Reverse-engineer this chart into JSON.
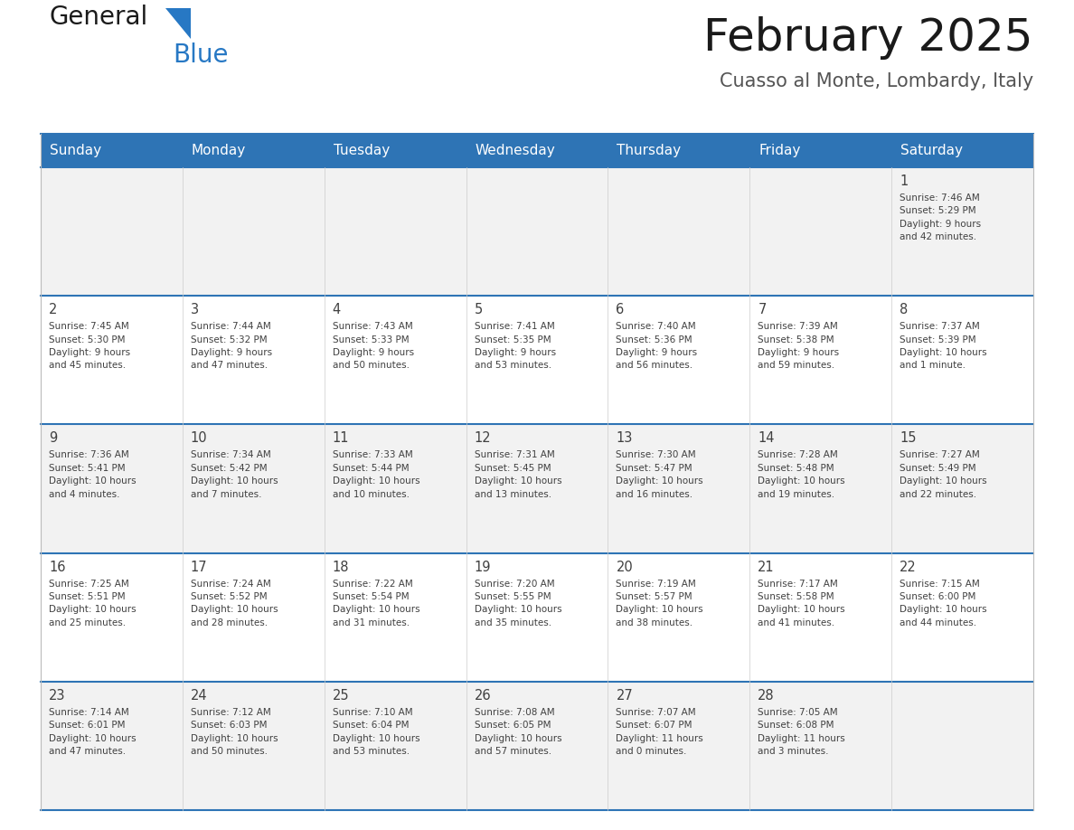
{
  "title": "February 2025",
  "subtitle": "Cuasso al Monte, Lombardy, Italy",
  "header_bg": "#2E74B5",
  "header_text_color": "#FFFFFF",
  "day_names": [
    "Sunday",
    "Monday",
    "Tuesday",
    "Wednesday",
    "Thursday",
    "Friday",
    "Saturday"
  ],
  "alt_row_bg": "#F2F2F2",
  "white_bg": "#FFFFFF",
  "border_color": "#2E74B5",
  "cell_border_color": "#CCCCCC",
  "text_color": "#404040",
  "logo_text_color": "#1A1A1A",
  "logo_blue_color": "#2778C4",
  "title_color": "#1A1A1A",
  "subtitle_color": "#555555",
  "weeks": [
    [
      {
        "day": null,
        "info": null
      },
      {
        "day": null,
        "info": null
      },
      {
        "day": null,
        "info": null
      },
      {
        "day": null,
        "info": null
      },
      {
        "day": null,
        "info": null
      },
      {
        "day": null,
        "info": null
      },
      {
        "day": 1,
        "info": "Sunrise: 7:46 AM\nSunset: 5:29 PM\nDaylight: 9 hours\nand 42 minutes."
      }
    ],
    [
      {
        "day": 2,
        "info": "Sunrise: 7:45 AM\nSunset: 5:30 PM\nDaylight: 9 hours\nand 45 minutes."
      },
      {
        "day": 3,
        "info": "Sunrise: 7:44 AM\nSunset: 5:32 PM\nDaylight: 9 hours\nand 47 minutes."
      },
      {
        "day": 4,
        "info": "Sunrise: 7:43 AM\nSunset: 5:33 PM\nDaylight: 9 hours\nand 50 minutes."
      },
      {
        "day": 5,
        "info": "Sunrise: 7:41 AM\nSunset: 5:35 PM\nDaylight: 9 hours\nand 53 minutes."
      },
      {
        "day": 6,
        "info": "Sunrise: 7:40 AM\nSunset: 5:36 PM\nDaylight: 9 hours\nand 56 minutes."
      },
      {
        "day": 7,
        "info": "Sunrise: 7:39 AM\nSunset: 5:38 PM\nDaylight: 9 hours\nand 59 minutes."
      },
      {
        "day": 8,
        "info": "Sunrise: 7:37 AM\nSunset: 5:39 PM\nDaylight: 10 hours\nand 1 minute."
      }
    ],
    [
      {
        "day": 9,
        "info": "Sunrise: 7:36 AM\nSunset: 5:41 PM\nDaylight: 10 hours\nand 4 minutes."
      },
      {
        "day": 10,
        "info": "Sunrise: 7:34 AM\nSunset: 5:42 PM\nDaylight: 10 hours\nand 7 minutes."
      },
      {
        "day": 11,
        "info": "Sunrise: 7:33 AM\nSunset: 5:44 PM\nDaylight: 10 hours\nand 10 minutes."
      },
      {
        "day": 12,
        "info": "Sunrise: 7:31 AM\nSunset: 5:45 PM\nDaylight: 10 hours\nand 13 minutes."
      },
      {
        "day": 13,
        "info": "Sunrise: 7:30 AM\nSunset: 5:47 PM\nDaylight: 10 hours\nand 16 minutes."
      },
      {
        "day": 14,
        "info": "Sunrise: 7:28 AM\nSunset: 5:48 PM\nDaylight: 10 hours\nand 19 minutes."
      },
      {
        "day": 15,
        "info": "Sunrise: 7:27 AM\nSunset: 5:49 PM\nDaylight: 10 hours\nand 22 minutes."
      }
    ],
    [
      {
        "day": 16,
        "info": "Sunrise: 7:25 AM\nSunset: 5:51 PM\nDaylight: 10 hours\nand 25 minutes."
      },
      {
        "day": 17,
        "info": "Sunrise: 7:24 AM\nSunset: 5:52 PM\nDaylight: 10 hours\nand 28 minutes."
      },
      {
        "day": 18,
        "info": "Sunrise: 7:22 AM\nSunset: 5:54 PM\nDaylight: 10 hours\nand 31 minutes."
      },
      {
        "day": 19,
        "info": "Sunrise: 7:20 AM\nSunset: 5:55 PM\nDaylight: 10 hours\nand 35 minutes."
      },
      {
        "day": 20,
        "info": "Sunrise: 7:19 AM\nSunset: 5:57 PM\nDaylight: 10 hours\nand 38 minutes."
      },
      {
        "day": 21,
        "info": "Sunrise: 7:17 AM\nSunset: 5:58 PM\nDaylight: 10 hours\nand 41 minutes."
      },
      {
        "day": 22,
        "info": "Sunrise: 7:15 AM\nSunset: 6:00 PM\nDaylight: 10 hours\nand 44 minutes."
      }
    ],
    [
      {
        "day": 23,
        "info": "Sunrise: 7:14 AM\nSunset: 6:01 PM\nDaylight: 10 hours\nand 47 minutes."
      },
      {
        "day": 24,
        "info": "Sunrise: 7:12 AM\nSunset: 6:03 PM\nDaylight: 10 hours\nand 50 minutes."
      },
      {
        "day": 25,
        "info": "Sunrise: 7:10 AM\nSunset: 6:04 PM\nDaylight: 10 hours\nand 53 minutes."
      },
      {
        "day": 26,
        "info": "Sunrise: 7:08 AM\nSunset: 6:05 PM\nDaylight: 10 hours\nand 57 minutes."
      },
      {
        "day": 27,
        "info": "Sunrise: 7:07 AM\nSunset: 6:07 PM\nDaylight: 11 hours\nand 0 minutes."
      },
      {
        "day": 28,
        "info": "Sunrise: 7:05 AM\nSunset: 6:08 PM\nDaylight: 11 hours\nand 3 minutes."
      },
      {
        "day": null,
        "info": null
      }
    ]
  ],
  "fig_width": 11.88,
  "fig_height": 9.18,
  "dpi": 100
}
